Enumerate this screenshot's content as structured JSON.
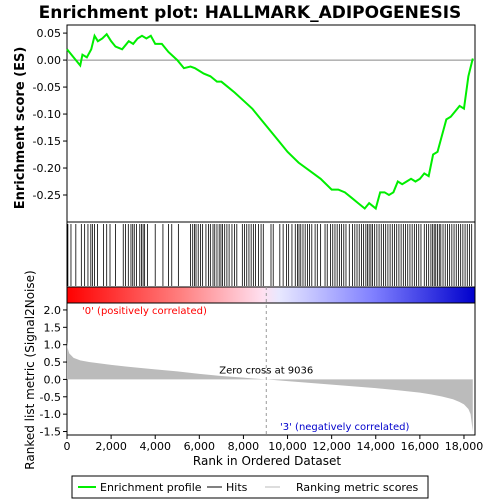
{
  "chart_data": {
    "type": "line",
    "title": "Enrichment plot: HALLMARK_ADIPOGENESIS",
    "colors": {
      "es_line": "#00ee00",
      "hits": "#000000",
      "metric": "#bbbbbb",
      "positive": "#ff0000",
      "negative": "#0000cc"
    },
    "top_panel": {
      "ylabel": "Enrichment score (ES)",
      "ylim": [
        -0.3,
        0.065
      ],
      "yticks": [
        "0.05",
        "0.00",
        "-0.05",
        "-0.10",
        "-0.15",
        "-0.20",
        "-0.25"
      ],
      "ytick_values": [
        0.05,
        0.0,
        -0.05,
        -0.1,
        -0.15,
        -0.2,
        -0.25
      ],
      "series": [
        {
          "name": "Enrichment profile",
          "x": [
            0,
            300,
            600,
            700,
            900,
            1100,
            1250,
            1400,
            1600,
            1800,
            2000,
            2200,
            2500,
            2800,
            3000,
            3200,
            3400,
            3600,
            3800,
            4000,
            4300,
            4600,
            5000,
            5300,
            5600,
            5800,
            6000,
            6200,
            6500,
            6800,
            7000,
            7300,
            7600,
            8000,
            8400,
            8800,
            9200,
            9600,
            10000,
            10500,
            11000,
            11500,
            12000,
            12300,
            12600,
            12900,
            13200,
            13500,
            13700,
            13850,
            14000,
            14200,
            14400,
            14600,
            14800,
            15000,
            15200,
            15400,
            15600,
            15800,
            16000,
            16200,
            16400,
            16600,
            16800,
            17000,
            17200,
            17400,
            17600,
            17800,
            18000,
            18200,
            18400
          ],
          "y": [
            0.02,
            0.005,
            -0.01,
            0.01,
            0.005,
            0.02,
            0.045,
            0.035,
            0.04,
            0.048,
            0.035,
            0.025,
            0.02,
            0.035,
            0.03,
            0.04,
            0.045,
            0.04,
            0.045,
            0.03,
            0.03,
            0.015,
            0.0,
            -0.015,
            -0.012,
            -0.015,
            -0.02,
            -0.025,
            -0.03,
            -0.04,
            -0.04,
            -0.05,
            -0.06,
            -0.075,
            -0.09,
            -0.11,
            -0.13,
            -0.15,
            -0.17,
            -0.19,
            -0.205,
            -0.22,
            -0.24,
            -0.24,
            -0.245,
            -0.255,
            -0.265,
            -0.275,
            -0.265,
            -0.27,
            -0.275,
            -0.245,
            -0.245,
            -0.25,
            -0.245,
            -0.225,
            -0.23,
            -0.225,
            -0.22,
            -0.225,
            -0.22,
            -0.21,
            -0.215,
            -0.175,
            -0.17,
            -0.14,
            -0.11,
            -0.105,
            -0.095,
            -0.085,
            -0.09,
            -0.03,
            0.003
          ]
        }
      ]
    },
    "hits": [
      40,
      180,
      400,
      650,
      800,
      950,
      1080,
      1150,
      1250,
      1380,
      1650,
      1800,
      1950,
      2200,
      2550,
      2650,
      2780,
      2900,
      2980,
      3050,
      3150,
      3300,
      3380,
      3450,
      3520,
      3650,
      4000,
      4350,
      4600,
      4750,
      5050,
      5600,
      5700,
      5780,
      5850,
      5950,
      6050,
      6150,
      6300,
      6420,
      6500,
      6620,
      6700,
      6800,
      6900,
      6980,
      7050,
      7150,
      7250,
      7350,
      7480,
      7600,
      7700,
      7950,
      8050,
      8150,
      8250,
      8350,
      8450,
      8550,
      8680,
      8800,
      8900,
      9250,
      9350,
      9650,
      9800,
      9950,
      10050,
      10200,
      10350,
      10450,
      10520,
      10600,
      10700,
      10800,
      10900,
      11000,
      11100,
      11250,
      11350,
      11500,
      11700,
      11800,
      11950,
      12050,
      12150,
      12250,
      12350,
      12450,
      12550,
      12650,
      12800,
      12950,
      13050,
      13150,
      13250,
      13350,
      13450,
      13550,
      13620,
      13700,
      13780,
      13850,
      13950,
      14050,
      14150,
      14250,
      14350,
      14450,
      14550,
      14650,
      14750,
      14850,
      14950,
      15050,
      15150,
      15250,
      15350,
      15450,
      15550,
      15650,
      15750,
      15850,
      15950,
      16050,
      16200,
      16300,
      16400,
      16500,
      16580,
      16650,
      16720,
      16800,
      16880,
      16950,
      17050,
      17150,
      17250,
      17350,
      17450,
      17550,
      17650,
      17750,
      17850,
      17950,
      18050,
      18150,
      18250,
      18350
    ],
    "bottom_panel": {
      "ylabel": "Ranked list metric (Signal2Noise)",
      "ylim": [
        -1.6,
        2.2
      ],
      "yticks": [
        "2.0",
        "1.5",
        "1.0",
        "0.5",
        "0.0",
        "-0.5",
        "-1.0",
        "-1.5"
      ],
      "ytick_values": [
        2.0,
        1.5,
        1.0,
        0.5,
        0.0,
        -0.5,
        -1.0,
        -1.5
      ],
      "metric_points": {
        "x": [
          0,
          30,
          100,
          300,
          600,
          1000,
          2000,
          3000,
          4000,
          5000,
          6000,
          7000,
          8000,
          9036,
          10000,
          11000,
          12000,
          13000,
          14000,
          15000,
          16000,
          16500,
          17000,
          17500,
          17800,
          18000,
          18200,
          18300,
          18400
        ],
        "y": [
          1.1,
          0.9,
          0.75,
          0.62,
          0.55,
          0.5,
          0.42,
          0.35,
          0.29,
          0.23,
          0.16,
          0.1,
          0.05,
          0.0,
          -0.05,
          -0.1,
          -0.15,
          -0.2,
          -0.25,
          -0.31,
          -0.38,
          -0.43,
          -0.49,
          -0.57,
          -0.65,
          -0.72,
          -0.85,
          -1.0,
          -1.5
        ]
      },
      "positive_label": "'0' (positively correlated)",
      "negative_label": "'3' (negatively correlated)",
      "zero_cross_label": "Zero cross at 9036",
      "zero_cross": 9036
    },
    "xlabel": "Rank in Ordered Dataset",
    "xlim": [
      0,
      18500
    ],
    "xticks": [
      "0",
      "2,000",
      "4,000",
      "6,000",
      "8,000",
      "10,000",
      "12,000",
      "14,000",
      "16,000",
      "18,000"
    ],
    "xtick_values": [
      0,
      2000,
      4000,
      6000,
      8000,
      10000,
      12000,
      14000,
      16000,
      18000
    ],
    "legend": {
      "placement": "bottom",
      "entries": [
        "Enrichment profile",
        "Hits",
        "Ranking metric scores"
      ]
    }
  }
}
